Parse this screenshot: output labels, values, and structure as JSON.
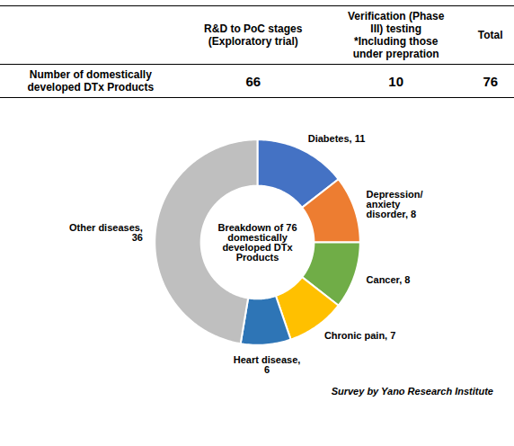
{
  "chart_data": [
    {
      "type": "table",
      "columns": [
        "R&D to PoC stages\n(Exploratory trial)",
        "Verification (Phase\nIII) testing\n*Including those\nunder prepration",
        "Total"
      ],
      "rows": [
        {
          "label": "Number of domestically\ndeveloped DTx Products",
          "values": [
            66,
            10,
            76
          ]
        }
      ]
    },
    {
      "type": "pie",
      "categories": [
        "Diabetes, 11",
        "Depression/\nanxiety\ndisorder, 8",
        "Cancer, 8",
        "Chronic pain, 7",
        "Heart disease,\n6",
        "Other diseases,\n36"
      ],
      "values": [
        11,
        8,
        8,
        7,
        6,
        36
      ],
      "colors": [
        "#4472C4",
        "#ED7D31",
        "#70AD47",
        "#FFC000",
        "#2E75B6",
        "#BFBFBF"
      ],
      "annotations": [
        "Breakdown of 76\ndomestically\ndeveloped DTx\nProducts"
      ],
      "caption": "Survey by Yano Research Institute"
    }
  ]
}
